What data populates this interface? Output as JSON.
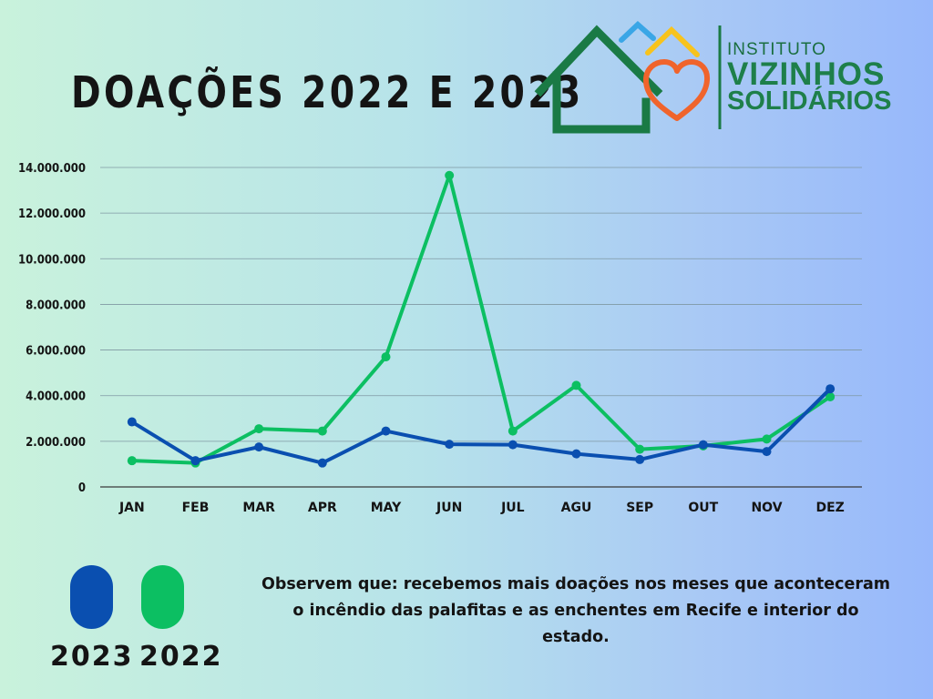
{
  "title": "DOAÇÕES 2022 E 2023",
  "logo": {
    "line1": "INSTITUTO",
    "line2": "VIZINHOS",
    "line3": "SOLIDÁRIOS",
    "colors": {
      "house": "#1a7a45",
      "heart": "#f0642c",
      "roof_blue": "#3aa6e6",
      "roof_yellow": "#f7c31d"
    }
  },
  "chart_data": {
    "type": "line",
    "categories": [
      "JAN",
      "FEB",
      "MAR",
      "APR",
      "MAY",
      "JUN",
      "JUL",
      "AGU",
      "SEP",
      "OUT",
      "NOV",
      "DEZ"
    ],
    "y_ticks": [
      "0",
      "2.000.000",
      "4.000.000",
      "6.000.000",
      "8.000.000",
      "10.000.000",
      "12.000.000",
      "14.000.000"
    ],
    "ylim": [
      0,
      14000000
    ],
    "grid": true,
    "series": [
      {
        "name": "2023",
        "color": "#0a4fb0",
        "values": [
          2850000,
          1150000,
          1750000,
          1050000,
          2450000,
          1870000,
          1850000,
          1450000,
          1200000,
          1850000,
          1550000,
          4300000
        ]
      },
      {
        "name": "2022",
        "color": "#0cbf62",
        "values": [
          1150000,
          1050000,
          2550000,
          2450000,
          5700000,
          13650000,
          2450000,
          4450000,
          1650000,
          1800000,
          2100000,
          3950000
        ]
      }
    ]
  },
  "legend": {
    "items": [
      {
        "label": "2023",
        "color": "#0a4fb0"
      },
      {
        "label": "2022",
        "color": "#0cbf62"
      }
    ]
  },
  "note": "Observem que: recebemos mais doações nos meses que aconteceram o incêndio das palafitas e as enchentes em Recife e interior do estado."
}
